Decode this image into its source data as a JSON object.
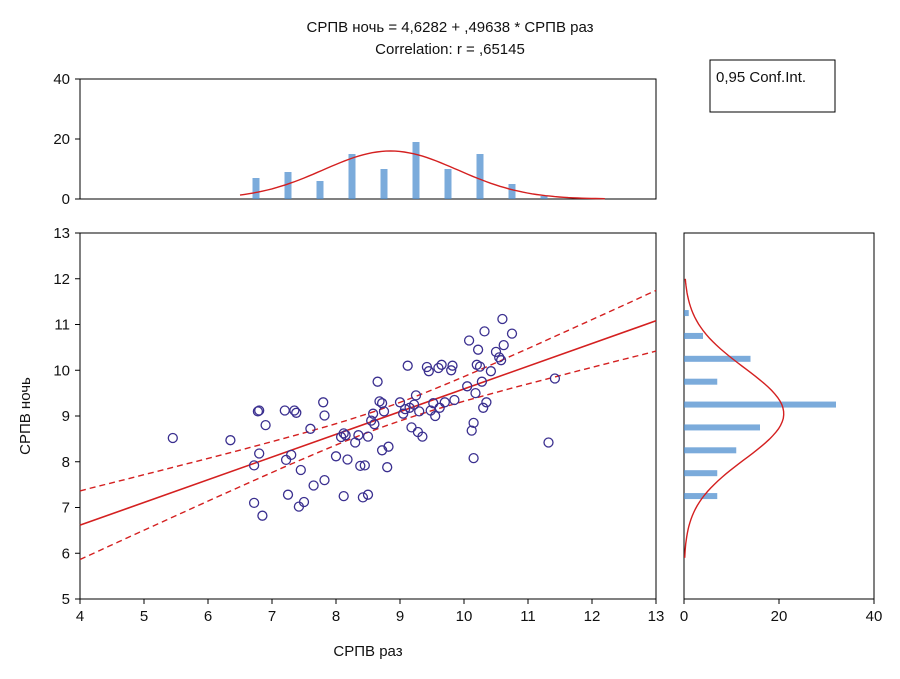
{
  "chart_data": {
    "type": "scatter",
    "title": "СРПВ ночь = 4,6282 + ,49638 * СРПВ раз",
    "subtitle": "Correlation: r = ,65145",
    "xlabel": "СРПВ раз",
    "ylabel": "СРПВ ночь",
    "xlim": [
      4,
      13
    ],
    "ylim": [
      5,
      13
    ],
    "x_ticks": [
      "4",
      "5",
      "6",
      "7",
      "8",
      "9",
      "10",
      "11",
      "12",
      "13"
    ],
    "y_ticks": [
      "5",
      "6",
      "7",
      "8",
      "9",
      "10",
      "11",
      "12",
      "13"
    ],
    "legend": "0,95 Conf.Int.",
    "regression": {
      "intercept": 4.6282,
      "slope": 0.49638,
      "ci_half_width_at_mean": 0.2,
      "ci_half_width_at_ends": 0.75
    },
    "points": [
      [
        5.45,
        8.52
      ],
      [
        6.35,
        8.47
      ],
      [
        6.72,
        7.92
      ],
      [
        6.72,
        7.1
      ],
      [
        6.78,
        9.1
      ],
      [
        6.8,
        9.12
      ],
      [
        6.8,
        8.18
      ],
      [
        6.85,
        6.82
      ],
      [
        6.9,
        8.8
      ],
      [
        7.2,
        9.12
      ],
      [
        7.22,
        8.04
      ],
      [
        7.25,
        7.28
      ],
      [
        7.3,
        8.15
      ],
      [
        7.35,
        9.12
      ],
      [
        7.38,
        9.07
      ],
      [
        7.42,
        7.02
      ],
      [
        7.45,
        7.82
      ],
      [
        7.5,
        7.12
      ],
      [
        7.6,
        8.72
      ],
      [
        7.65,
        7.48
      ],
      [
        7.8,
        9.3
      ],
      [
        7.82,
        9.01
      ],
      [
        7.82,
        7.6
      ],
      [
        8.0,
        8.12
      ],
      [
        8.08,
        8.54
      ],
      [
        8.12,
        8.62
      ],
      [
        8.15,
        8.58
      ],
      [
        8.18,
        8.05
      ],
      [
        8.12,
        7.25
      ],
      [
        8.3,
        8.42
      ],
      [
        8.35,
        8.58
      ],
      [
        8.38,
        7.91
      ],
      [
        8.42,
        7.22
      ],
      [
        8.45,
        7.92
      ],
      [
        8.5,
        7.28
      ],
      [
        8.5,
        8.55
      ],
      [
        8.55,
        8.9
      ],
      [
        8.58,
        9.05
      ],
      [
        8.6,
        8.82
      ],
      [
        8.65,
        9.75
      ],
      [
        8.68,
        9.32
      ],
      [
        8.72,
        9.28
      ],
      [
        8.75,
        9.1
      ],
      [
        8.72,
        8.25
      ],
      [
        8.8,
        7.88
      ],
      [
        8.82,
        8.33
      ],
      [
        9.0,
        9.3
      ],
      [
        9.05,
        9.05
      ],
      [
        9.08,
        9.15
      ],
      [
        9.12,
        10.1
      ],
      [
        9.15,
        9.18
      ],
      [
        9.18,
        8.75
      ],
      [
        9.22,
        9.25
      ],
      [
        9.25,
        9.45
      ],
      [
        9.28,
        8.65
      ],
      [
        9.3,
        9.1
      ],
      [
        9.35,
        8.55
      ],
      [
        9.42,
        10.07
      ],
      [
        9.45,
        9.98
      ],
      [
        9.48,
        9.12
      ],
      [
        9.52,
        9.28
      ],
      [
        9.55,
        9.0
      ],
      [
        9.6,
        10.05
      ],
      [
        9.62,
        9.18
      ],
      [
        9.65,
        10.12
      ],
      [
        9.7,
        9.3
      ],
      [
        9.8,
        10.0
      ],
      [
        9.82,
        10.1
      ],
      [
        9.85,
        9.35
      ],
      [
        10.05,
        9.65
      ],
      [
        10.08,
        10.65
      ],
      [
        10.12,
        8.68
      ],
      [
        10.15,
        8.85
      ],
      [
        10.15,
        8.08
      ],
      [
        10.18,
        9.5
      ],
      [
        10.2,
        10.12
      ],
      [
        10.22,
        10.45
      ],
      [
        10.25,
        10.08
      ],
      [
        10.28,
        9.75
      ],
      [
        10.3,
        9.18
      ],
      [
        10.32,
        10.85
      ],
      [
        10.35,
        9.3
      ],
      [
        10.42,
        9.98
      ],
      [
        10.5,
        10.4
      ],
      [
        10.55,
        10.28
      ],
      [
        10.58,
        10.22
      ],
      [
        10.6,
        11.12
      ],
      [
        10.62,
        10.55
      ],
      [
        10.75,
        10.8
      ],
      [
        11.32,
        8.42
      ],
      [
        11.42,
        9.82
      ]
    ],
    "top_histogram": {
      "ylim": [
        0,
        40
      ],
      "y_ticks": [
        "0",
        "20",
        "40"
      ],
      "x": [
        6.75,
        7.25,
        7.75,
        8.25,
        8.75,
        9.25,
        9.75,
        10.25,
        10.75,
        11.25
      ],
      "counts": [
        7,
        9,
        6,
        15,
        10,
        19,
        10,
        15,
        5,
        1
      ],
      "normal_curve": {
        "mean": 8.85,
        "sd": 1.05,
        "peak": 16
      }
    },
    "right_histogram": {
      "xlim": [
        0,
        40
      ],
      "x_ticks": [
        "0",
        "20",
        "40"
      ],
      "y": [
        7.25,
        7.75,
        8.25,
        8.75,
        9.25,
        9.75,
        10.25,
        10.75,
        11.25
      ],
      "counts": [
        7,
        7,
        11,
        16,
        32,
        7,
        14,
        4,
        1
      ],
      "normal_curve": {
        "mean": 9.05,
        "sd": 1.0,
        "peak": 21
      }
    },
    "colors": {
      "points": "#3a2f8f",
      "lines": "#d42020",
      "bars": "#4f8fcf"
    }
  }
}
